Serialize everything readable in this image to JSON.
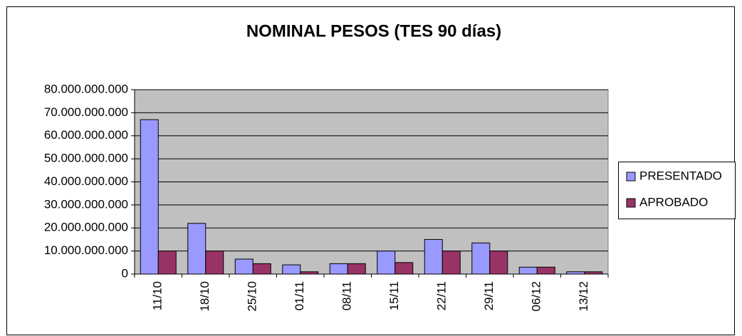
{
  "chart_data": {
    "type": "bar",
    "title": "NOMINAL PESOS (TES 90 días)",
    "categories": [
      "11/10",
      "18/10",
      "25/10",
      "01/11",
      "08/11",
      "15/11",
      "22/11",
      "29/11",
      "06/12",
      "13/12"
    ],
    "series": [
      {
        "name": "PRESENTADO",
        "color": "#9999ff",
        "values": [
          67000000000,
          22000000000,
          6500000000,
          4000000000,
          4500000000,
          10000000000,
          15000000000,
          13500000000,
          3000000000,
          1000000000
        ]
      },
      {
        "name": "APROBADO",
        "color": "#993366",
        "values": [
          10000000000,
          10000000000,
          4500000000,
          1000000000,
          4500000000,
          5000000000,
          10000000000,
          10000000000,
          3000000000,
          1000000000
        ]
      }
    ],
    "ylim": [
      0,
      80000000000
    ],
    "yticks": [
      0,
      {
        "value": 10000000000,
        "label": "10.000.000.000"
      },
      {
        "value": 20000000000,
        "label": "20.000.000.000"
      },
      {
        "value": 30000000000,
        "label": "30.000.000.000"
      },
      {
        "value": 40000000000,
        "label": "40.000.000.000"
      },
      {
        "value": 50000000000,
        "label": "50.000.000.000"
      },
      {
        "value": 60000000000,
        "label": "60.000.000.000"
      },
      {
        "value": 70000000000,
        "label": "70.000.000.000"
      },
      {
        "value": 80000000000,
        "label": "80.000.000.000"
      }
    ],
    "grid": true,
    "legend": "right",
    "plot_background": "#c0c0c0"
  }
}
